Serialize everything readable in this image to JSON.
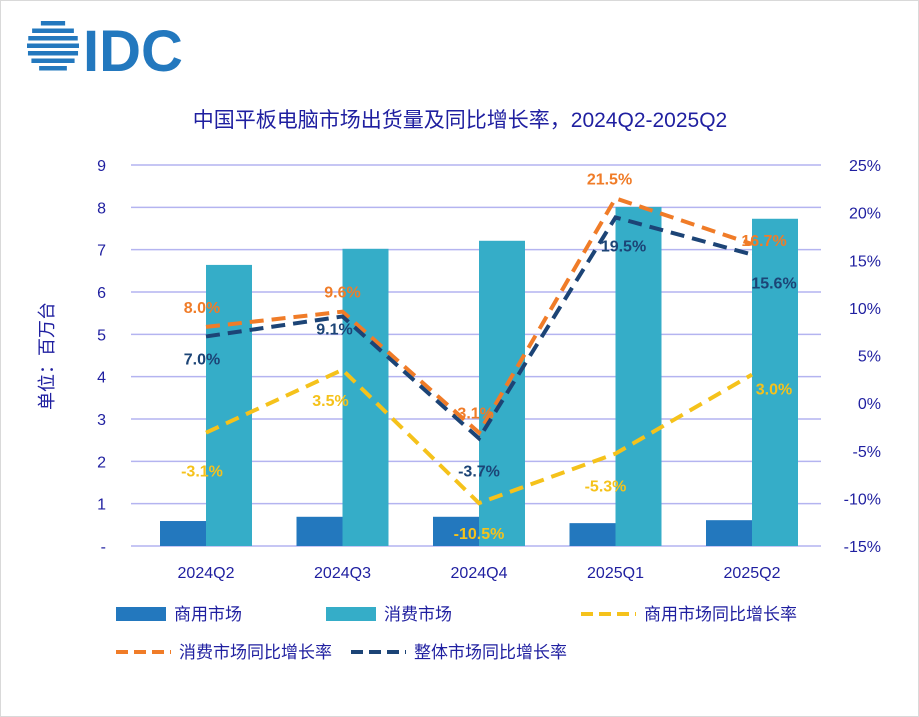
{
  "logo_text": "IDC",
  "colors": {
    "commercial": "#2378be",
    "consumer": "#35adc8",
    "commercial_yoy": "#f5c21b",
    "consumer_yoy": "#f07c28",
    "overall_yoy": "#1c4476",
    "axis_text": "#1f1fa0",
    "grid": "#b4b4f0"
  },
  "chart_data": {
    "type": "bar+line",
    "title": "中国平板电脑市场出货量及同比增长率，2024Q2-2025Q2",
    "ylabel": "单位：百万台",
    "categories": [
      "2024Q2",
      "2024Q3",
      "2024Q4",
      "2025Q1",
      "2025Q2"
    ],
    "ylim": [
      0,
      9
    ],
    "y_ticks": [
      "-",
      "1",
      "2",
      "3",
      "4",
      "5",
      "6",
      "7",
      "8",
      "9"
    ],
    "y2lim": [
      -15,
      25
    ],
    "y2_ticks": [
      "-15%",
      "-10%",
      "-5%",
      "0%",
      "5%",
      "10%",
      "15%",
      "20%",
      "25%"
    ],
    "grid": true,
    "legend_placement": "bottom",
    "bar_series": [
      {
        "name": "商用市场",
        "values": [
          0.59,
          0.69,
          0.69,
          0.54,
          0.61
        ]
      },
      {
        "name": "消费市场",
        "values": [
          6.64,
          7.02,
          7.21,
          8.01,
          7.73
        ]
      }
    ],
    "line_series": [
      {
        "name": "商用市场同比增长率",
        "values": [
          -3.1,
          3.5,
          -10.5,
          -5.3,
          3.0
        ],
        "labels": [
          "-3.1%",
          "3.5%",
          "-10.5%",
          "-5.3%",
          "3.0%"
        ]
      },
      {
        "name": "消费市场同比增长率",
        "values": [
          8.0,
          9.6,
          -3.1,
          21.5,
          16.7
        ],
        "labels": [
          "8.0%",
          "9.6%",
          "-3.1%",
          "21.5%",
          "16.7%"
        ]
      },
      {
        "name": "整体市场同比增长率",
        "values": [
          7.0,
          9.1,
          -3.7,
          19.5,
          15.6
        ],
        "labels": [
          "7.0%",
          "9.1%",
          "-3.7%",
          "19.5%",
          "15.6%"
        ]
      }
    ]
  }
}
